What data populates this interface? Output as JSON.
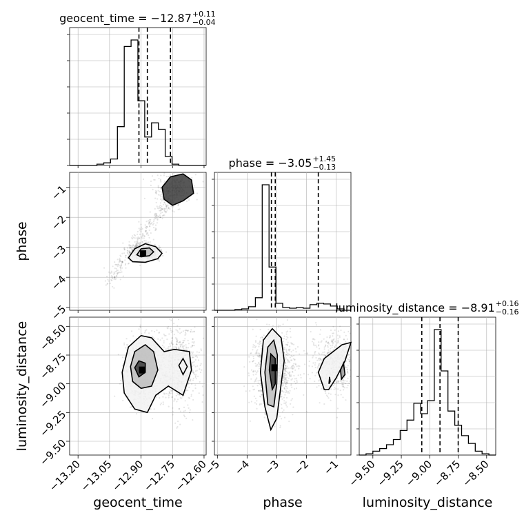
{
  "chart_data": {
    "type": "corner",
    "parameters": [
      "geocent_time",
      "phase",
      "luminosity_distance"
    ],
    "titles": [
      {
        "text": "geocent_time = −12.87",
        "sup": "+0.11",
        "sub": "−0.04"
      },
      {
        "text": "phase = −3.05",
        "sup": "+1.45",
        "sub": "−0.13"
      },
      {
        "text": "luminosity_distance = −8.91",
        "sup": "+0.16",
        "sub": "−0.16"
      }
    ],
    "ranges": [
      [
        -13.24,
        -12.59
      ],
      [
        -5.1,
        -0.5
      ],
      [
        -9.62,
        -8.42
      ]
    ],
    "ticks": [
      {
        "values": [
          -13.2,
          -13.05,
          -12.9,
          -12.75,
          -12.6
        ],
        "labels": [
          "−13.20",
          "−13.05",
          "−12.90",
          "−12.75",
          "−12.60"
        ]
      },
      {
        "values": [
          -5,
          -4,
          -3,
          -2,
          -1
        ],
        "labels": [
          "−5",
          "−4",
          "−3",
          "−2",
          "−1"
        ]
      },
      {
        "values": [
          -9.5,
          -9.25,
          -9.0,
          -8.75,
          -8.5
        ],
        "labels": [
          "−9.50",
          "−9.25",
          "−9.00",
          "−8.75",
          "−8.50"
        ]
      }
    ],
    "quantiles": [
      [
        -12.91,
        -12.87,
        -12.76
      ],
      [
        -3.18,
        -3.05,
        -1.6
      ],
      [
        -9.07,
        -8.91,
        -8.75
      ]
    ],
    "histograms": [
      {
        "edges_start": -13.24,
        "bin_width": 0.0325,
        "counts": [
          0,
          0,
          0,
          0,
          1,
          2,
          5,
          30,
          92,
          97,
          50,
          22,
          33,
          28,
          7,
          1,
          0,
          0,
          0,
          0
        ]
      },
      {
        "edges_start": -5.1,
        "bin_width": 0.23,
        "counts": [
          0,
          0,
          0,
          1,
          2,
          5,
          18,
          180,
          62,
          10,
          4,
          3,
          4,
          3,
          8,
          10,
          9,
          6,
          2,
          0
        ]
      },
      {
        "edges_start": -9.62,
        "bin_width": 0.06,
        "counts": [
          0,
          1,
          3,
          5,
          8,
          12,
          19,
          27,
          40,
          32,
          42,
          97,
          65,
          34,
          23,
          15,
          9,
          3,
          1,
          0
        ]
      }
    ],
    "grid": true,
    "contours": [
      {
        "panel": "geocent_time-phase",
        "levels": [
          [
            [
              -12.96,
              -3.35
            ],
            [
              -12.93,
              -3.05
            ],
            [
              -12.88,
              -2.88
            ],
            [
              -12.83,
              -2.98
            ],
            [
              -12.8,
              -3.2
            ],
            [
              -12.82,
              -3.38
            ],
            [
              -12.88,
              -3.5
            ],
            [
              -12.94,
              -3.48
            ]
          ],
          [
            [
              -12.92,
              -3.25
            ],
            [
              -12.9,
              -3.05
            ],
            [
              -12.86,
              -3.02
            ],
            [
              -12.84,
              -3.15
            ],
            [
              -12.86,
              -3.28
            ],
            [
              -12.9,
              -3.32
            ]
          ],
          [
            [
              -12.8,
              -1.0
            ],
            [
              -12.76,
              -0.65
            ],
            [
              -12.7,
              -0.55
            ],
            [
              -12.66,
              -0.75
            ],
            [
              -12.65,
              -1.2
            ],
            [
              -12.7,
              -1.45
            ],
            [
              -12.75,
              -1.6
            ],
            [
              -12.79,
              -1.4
            ]
          ]
        ]
      },
      {
        "panel": "geocent_time-luminosity_distance",
        "levels": [
          [
            [
              -12.99,
              -8.9
            ],
            [
              -12.96,
              -8.68
            ],
            [
              -12.9,
              -8.58
            ],
            [
              -12.85,
              -8.6
            ],
            [
              -12.79,
              -8.72
            ],
            [
              -12.74,
              -8.7
            ],
            [
              -12.67,
              -8.72
            ],
            [
              -12.66,
              -8.88
            ],
            [
              -12.7,
              -9.1
            ],
            [
              -12.77,
              -9.02
            ],
            [
              -12.83,
              -9.1
            ],
            [
              -12.87,
              -9.25
            ],
            [
              -12.93,
              -9.22
            ],
            [
              -12.98,
              -9.08
            ]
          ],
          [
            [
              -12.95,
              -8.85
            ],
            [
              -12.93,
              -8.72
            ],
            [
              -12.88,
              -8.66
            ],
            [
              -12.84,
              -8.72
            ],
            [
              -12.82,
              -8.88
            ],
            [
              -12.85,
              -9.02
            ],
            [
              -12.9,
              -9.04
            ],
            [
              -12.94,
              -8.98
            ]
          ],
          [
            [
              -12.93,
              -8.86
            ],
            [
              -12.91,
              -8.8
            ],
            [
              -12.88,
              -8.82
            ],
            [
              -12.88,
              -8.9
            ],
            [
              -12.91,
              -8.94
            ]
          ],
          [
            [
              -12.72,
              -8.84
            ],
            [
              -12.7,
              -8.78
            ],
            [
              -12.68,
              -8.85
            ],
            [
              -12.7,
              -8.92
            ]
          ]
        ]
      },
      {
        "panel": "phase-luminosity_distance",
        "levels": [
          [
            [
              -3.55,
              -8.9
            ],
            [
              -3.45,
              -8.62
            ],
            [
              -3.15,
              -8.52
            ],
            [
              -2.85,
              -8.6
            ],
            [
              -2.75,
              -8.8
            ],
            [
              -2.85,
              -9.0
            ],
            [
              -3.0,
              -9.3
            ],
            [
              -3.2,
              -9.4
            ],
            [
              -3.4,
              -9.2
            ]
          ],
          [
            [
              -3.4,
              -8.9
            ],
            [
              -3.3,
              -8.68
            ],
            [
              -3.1,
              -8.62
            ],
            [
              -2.98,
              -8.75
            ],
            [
              -3.0,
              -9.0
            ],
            [
              -3.1,
              -9.2
            ],
            [
              -3.3,
              -9.18
            ]
          ],
          [
            [
              -3.25,
              -8.88
            ],
            [
              -3.2,
              -8.74
            ],
            [
              -3.05,
              -8.78
            ],
            [
              -3.05,
              -9.0
            ],
            [
              -3.15,
              -9.05
            ]
          ],
          [
            [
              -1.6,
              -8.9
            ],
            [
              -1.4,
              -8.78
            ],
            [
              -0.8,
              -8.66
            ],
            [
              -0.5,
              -8.64
            ],
            [
              -0.7,
              -8.8
            ],
            [
              -1.0,
              -8.95
            ],
            [
              -1.25,
              -9.05
            ],
            [
              -1.4,
              -9.05
            ]
          ],
          [
            [
              -0.85,
              -8.88
            ],
            [
              -0.75,
              -8.82
            ],
            [
              -0.7,
              -8.92
            ],
            [
              -0.82,
              -8.96
            ]
          ],
          [
            [
              -1.22,
              -8.94
            ],
            [
              -1.2,
              -8.98
            ],
            [
              -1.24,
              -9.0
            ]
          ]
        ]
      }
    ]
  }
}
